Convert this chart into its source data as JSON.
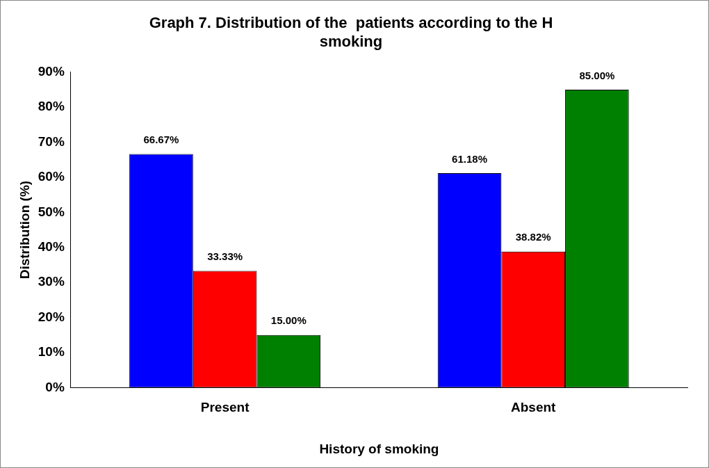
{
  "chart_data": {
    "type": "bar",
    "title": "Graph 7. Distribution of the  patients according to the H\nsmoking",
    "xlabel": "History of smoking",
    "ylabel": "Distribution (%)",
    "categories": [
      "Present",
      "Absent"
    ],
    "series": [
      {
        "color": "#0000ff",
        "values": [
          66.67,
          61.18
        ],
        "value_labels": [
          "66.67%",
          "61.18%"
        ]
      },
      {
        "color": "#ff0000",
        "values": [
          33.33,
          38.82
        ],
        "value_labels": [
          "33.33%",
          "38.82%"
        ]
      },
      {
        "color": "#008000",
        "values": [
          15,
          85
        ],
        "value_labels": [
          "15.00%",
          "85.00%"
        ]
      }
    ],
    "ylim": [
      0,
      90
    ],
    "yticks": [
      {
        "value": 0,
        "label": "0%"
      },
      {
        "value": 10,
        "label": "10%"
      },
      {
        "value": 20,
        "label": "20%"
      },
      {
        "value": 30,
        "label": "30%"
      },
      {
        "value": 40,
        "label": "40%"
      },
      {
        "value": 50,
        "label": "50%"
      },
      {
        "value": 60,
        "label": "60%"
      },
      {
        "value": 70,
        "label": "70%"
      },
      {
        "value": 80,
        "label": "80%"
      },
      {
        "value": 90,
        "label": "90%"
      }
    ],
    "grid": false,
    "legend": false
  }
}
